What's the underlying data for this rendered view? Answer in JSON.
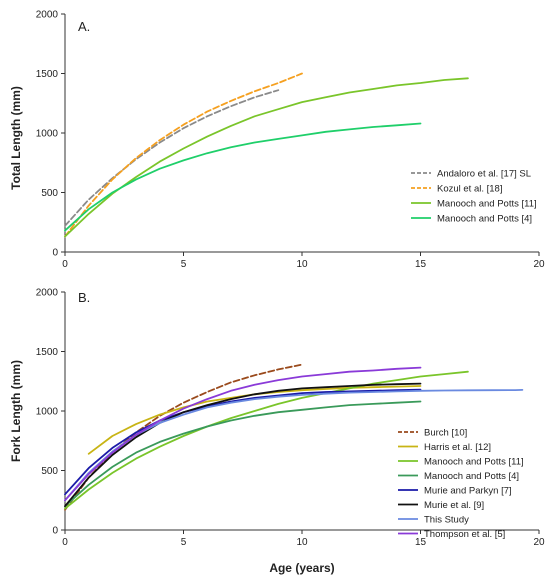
{
  "figure": {
    "xlabel": "Age (years)"
  },
  "chart_data": [
    {
      "type": "line",
      "panel_label": "A.",
      "xlabel": "",
      "ylabel": "Total Length (mm)",
      "xlim": [
        0,
        20
      ],
      "ylim": [
        0,
        2000
      ],
      "xticks": [
        0,
        5,
        10,
        15,
        20
      ],
      "yticks": [
        0,
        500,
        1000,
        1500,
        2000
      ],
      "legend_position": "right",
      "series": [
        {
          "name": "Andaloro et al. [17] SL",
          "color": "#8a8a8a",
          "dashed": true,
          "x": [
            0,
            1,
            2,
            3,
            4,
            5,
            6,
            7,
            8,
            9
          ],
          "y": [
            220,
            440,
            620,
            780,
            920,
            1040,
            1140,
            1225,
            1300,
            1360
          ]
        },
        {
          "name": "Kozul et al. [18]",
          "color": "#f5a020",
          "dashed": true,
          "x": [
            0,
            1,
            2,
            3,
            4,
            5,
            6,
            7,
            8,
            9,
            10
          ],
          "y": [
            130,
            390,
            610,
            790,
            940,
            1070,
            1180,
            1270,
            1350,
            1420,
            1500
          ]
        },
        {
          "name": "Manooch and Potts [11]",
          "color": "#7ac52a",
          "dashed": false,
          "x": [
            0,
            1,
            2,
            3,
            4,
            5,
            6,
            7,
            8,
            9,
            10,
            11,
            12,
            13,
            14,
            15,
            16,
            17
          ],
          "y": [
            130,
            320,
            490,
            630,
            760,
            870,
            970,
            1060,
            1140,
            1200,
            1260,
            1300,
            1340,
            1370,
            1400,
            1420,
            1445,
            1460
          ]
        },
        {
          "name": "Manooch and Potts [4]",
          "color": "#1fcf6a",
          "dashed": false,
          "x": [
            0,
            1,
            2,
            3,
            4,
            5,
            6,
            7,
            8,
            9,
            10,
            11,
            12,
            13,
            14,
            15
          ],
          "y": [
            180,
            360,
            500,
            610,
            700,
            770,
            830,
            880,
            920,
            950,
            980,
            1010,
            1030,
            1050,
            1065,
            1080
          ]
        }
      ]
    },
    {
      "type": "line",
      "panel_label": "B.",
      "xlabel": "",
      "ylabel": "Fork Length (mm)",
      "xlim": [
        0,
        20
      ],
      "ylim": [
        0,
        2000
      ],
      "xticks": [
        0,
        5,
        10,
        15,
        20
      ],
      "yticks": [
        0,
        500,
        1000,
        1500,
        2000
      ],
      "legend_position": "bottom-right",
      "series": [
        {
          "name": "Burch [10]",
          "color": "#9a4a1c",
          "dashed": true,
          "x": [
            0,
            1,
            2,
            3,
            4,
            5,
            6,
            7,
            8,
            9,
            10
          ],
          "y": [
            170,
            440,
            650,
            820,
            960,
            1070,
            1160,
            1240,
            1300,
            1350,
            1390
          ]
        },
        {
          "name": "Harris et al. [12]",
          "color": "#c8b414",
          "dashed": false,
          "x": [
            1,
            2,
            3,
            4,
            5,
            6,
            7,
            8,
            9,
            10,
            11,
            12,
            13,
            14,
            15
          ],
          "y": [
            640,
            790,
            890,
            970,
            1030,
            1080,
            1110,
            1140,
            1160,
            1175,
            1185,
            1195,
            1200,
            1205,
            1210
          ]
        },
        {
          "name": "Manooch and Potts [11]",
          "color": "#7ac52a",
          "dashed": false,
          "x": [
            0,
            1,
            2,
            3,
            4,
            5,
            6,
            7,
            8,
            9,
            10,
            11,
            12,
            13,
            14,
            15,
            16,
            17
          ],
          "y": [
            180,
            340,
            480,
            600,
            700,
            790,
            870,
            940,
            1000,
            1060,
            1110,
            1150,
            1190,
            1230,
            1260,
            1290,
            1310,
            1330
          ]
        },
        {
          "name": "Manooch and Potts [4]",
          "color": "#3a9a5a",
          "dashed": false,
          "x": [
            0,
            1,
            2,
            3,
            4,
            5,
            6,
            7,
            8,
            9,
            10,
            11,
            12,
            13,
            14,
            15
          ],
          "y": [
            200,
            380,
            530,
            650,
            740,
            810,
            870,
            920,
            960,
            990,
            1010,
            1030,
            1050,
            1060,
            1070,
            1080
          ]
        },
        {
          "name": "Murie and Parkyn [7]",
          "color": "#1a1aa8",
          "dashed": false,
          "x": [
            0,
            1,
            2,
            3,
            4,
            5,
            6,
            7,
            8,
            9,
            10,
            11,
            12,
            13,
            14,
            15
          ],
          "y": [
            300,
            520,
            690,
            820,
            920,
            990,
            1040,
            1080,
            1110,
            1130,
            1150,
            1160,
            1165,
            1170,
            1175,
            1180
          ]
        },
        {
          "name": "Murie et al. [9]",
          "color": "#111111",
          "dashed": false,
          "x": [
            0,
            1,
            2,
            3,
            4,
            5,
            6,
            7,
            8,
            9,
            10,
            11,
            12,
            13,
            14,
            15
          ],
          "y": [
            200,
            440,
            630,
            780,
            900,
            990,
            1050,
            1100,
            1140,
            1170,
            1190,
            1200,
            1210,
            1220,
            1225,
            1230
          ]
        },
        {
          "name": "This Study",
          "color": "#6a8ae0",
          "dashed": false,
          "x": [
            0,
            1,
            2,
            3,
            4,
            5,
            6,
            7,
            8,
            9,
            10,
            11,
            12,
            13,
            14,
            15,
            16,
            17,
            18,
            19,
            19.3
          ],
          "y": [
            250,
            480,
            660,
            800,
            900,
            970,
            1030,
            1070,
            1100,
            1120,
            1135,
            1145,
            1155,
            1160,
            1165,
            1170,
            1172,
            1174,
            1175,
            1176,
            1177
          ]
        },
        {
          "name": "Thompson et al. [5]",
          "color": "#8a3ad8",
          "dashed": false,
          "x": [
            0,
            1,
            2,
            3,
            4,
            5,
            6,
            7,
            8,
            9,
            10,
            11,
            12,
            13,
            14,
            15
          ],
          "y": [
            250,
            470,
            650,
            800,
            920,
            1020,
            1100,
            1170,
            1220,
            1260,
            1290,
            1310,
            1330,
            1340,
            1355,
            1365
          ]
        }
      ]
    }
  ]
}
